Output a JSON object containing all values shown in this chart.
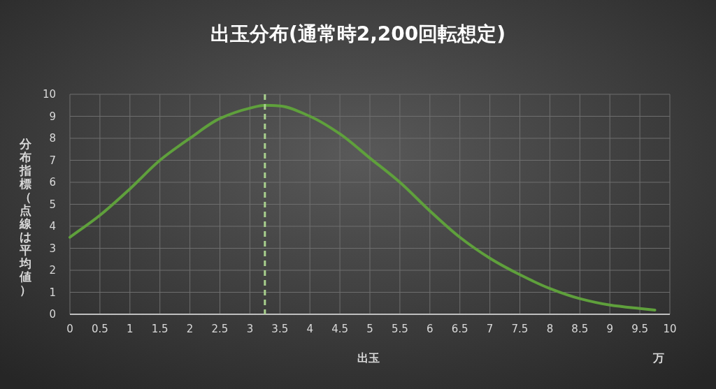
{
  "chart_data": {
    "type": "line",
    "title": "出玉分布(通常時2,200回転想定)",
    "xlabel": "出玉",
    "ylabel": "分布指標（点線は平均値）",
    "annotations": [
      "万"
    ],
    "x": [
      0,
      0.5,
      1,
      1.5,
      2,
      2.5,
      3,
      3.25,
      3.5,
      4,
      4.5,
      5,
      5.5,
      6,
      6.5,
      7,
      7.5,
      8,
      8.5,
      9,
      9.5,
      9.75
    ],
    "series": [
      {
        "color": "#5fa03c",
        "values": [
          3.5,
          4.5,
          5.7,
          7.0,
          8.0,
          8.9,
          9.37,
          9.5,
          9.47,
          9.0,
          8.2,
          7.1,
          6.0,
          4.7,
          3.5,
          2.55,
          1.8,
          1.17,
          0.71,
          0.42,
          0.26,
          0.19
        ]
      }
    ],
    "xlim": [
      0,
      10
    ],
    "ylim": [
      0,
      10
    ],
    "xticks": [
      0,
      0.5,
      1,
      1.5,
      2,
      2.5,
      3,
      3.5,
      4,
      4.5,
      5,
      5.5,
      6,
      6.5,
      7,
      7.5,
      8,
      8.5,
      9,
      9.5,
      10
    ],
    "yticks": [
      0,
      1,
      2,
      3,
      4,
      5,
      6,
      7,
      8,
      9,
      10
    ],
    "grid": true,
    "ref_lines": [
      {
        "axis": "x",
        "value": 3.25,
        "color": "#a9d18e",
        "line_style": "dashed"
      }
    ]
  }
}
